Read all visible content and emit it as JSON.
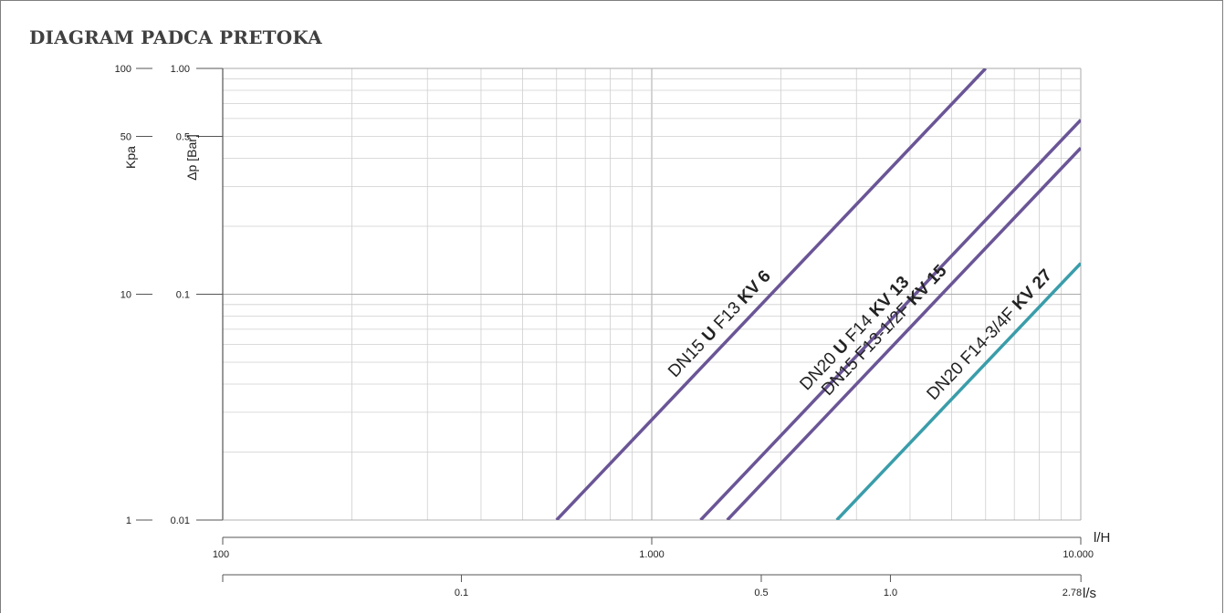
{
  "title": "DIAGRAM PADCA PRETOKA",
  "colors": {
    "purple": "#6a5596",
    "teal": "#3a9daa",
    "grid": "#cfcfcf",
    "axis": "#555555"
  },
  "chart_data": {
    "type": "line",
    "title": "DIAGRAM PADCA PRETOKA",
    "log_scale": {
      "x": true,
      "y": true
    },
    "grid": true,
    "x_axis": {
      "unit": "l/H",
      "range": [
        100,
        10000
      ],
      "ticks": [
        "100",
        "1.000",
        "10.000"
      ]
    },
    "x2_axis": {
      "unit": "l/s",
      "ticks": [
        {
          "label": "0.1",
          "value": 0.1
        },
        {
          "label": "0.5",
          "value": 0.5
        },
        {
          "label": "1.0",
          "value": 1.0
        },
        {
          "label": "2.78",
          "value": 2.78
        }
      ]
    },
    "y_axis": {
      "label": "Δp [Bar]",
      "range": [
        0.01,
        1.0
      ],
      "ticks": [
        {
          "label": "1.00",
          "value": 1.0
        },
        {
          "label": "0.5",
          "value": 0.5
        },
        {
          "label": "0.1",
          "value": 0.1
        },
        {
          "label": "0.01",
          "value": 0.01
        }
      ]
    },
    "y2_axis": {
      "label": "Kpa",
      "ticks": [
        {
          "label": "100",
          "value": 100
        },
        {
          "label": "50",
          "value": 50
        },
        {
          "label": "10",
          "value": 10
        },
        {
          "label": "1",
          "value": 1
        }
      ]
    },
    "series": [
      {
        "label_parts": [
          [
            "DN15 ",
            false
          ],
          [
            "U",
            true
          ],
          [
            " F13 ",
            false
          ],
          [
            "KV 6",
            true
          ]
        ],
        "kv": 6,
        "color": "#6a5596",
        "label_flow": 1550
      },
      {
        "label_parts": [
          [
            "DN20 ",
            false
          ],
          [
            "U",
            true
          ],
          [
            " F14 ",
            false
          ],
          [
            "KV 13",
            true
          ]
        ],
        "kv": 13,
        "color": "#6a5596",
        "label_flow": 3200
      },
      {
        "label_parts": [
          [
            "DN15 F13-1/2F ",
            false
          ],
          [
            "KV 15",
            true
          ]
        ],
        "kv": 15,
        "color": "#6a5596",
        "label_flow": 3750
      },
      {
        "label_parts": [
          [
            "DN20 F14-3/4F ",
            false
          ],
          [
            "KV 27",
            true
          ]
        ],
        "kv": 27,
        "color": "#3a9daa",
        "label_flow": 6600
      }
    ]
  }
}
